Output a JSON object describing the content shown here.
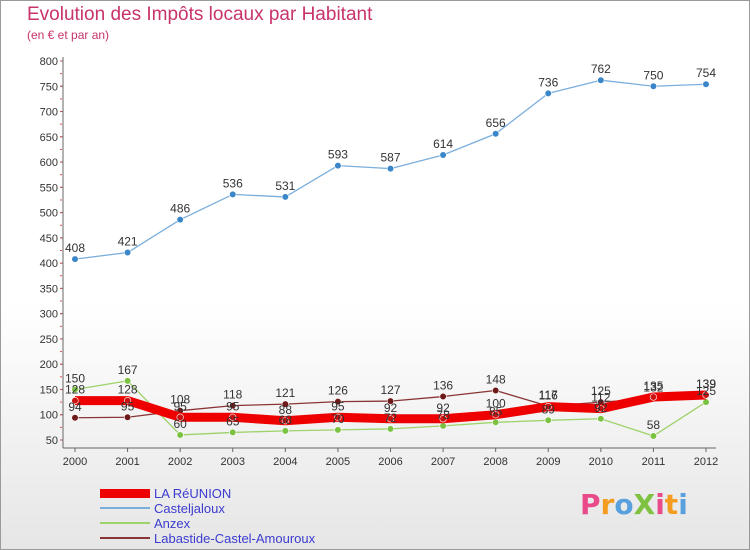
{
  "title": "Evolution des Impôts locaux par Habitant",
  "subtitle": "(en € et par an)",
  "logo": {
    "text": "ProXiti",
    "colors": [
      "#e94a8a",
      "#f39c1f",
      "#5aa0dd",
      "#7fc241",
      "#e94a8a",
      "#f39c1f",
      "#5aa0dd"
    ]
  },
  "chart_data": {
    "type": "line",
    "x": [
      "2000",
      "2001",
      "2002",
      "2003",
      "2004",
      "2005",
      "2006",
      "2007",
      "2008",
      "2009",
      "2010",
      "2011",
      "2012"
    ],
    "ylim": [
      50,
      800
    ],
    "yticks": [
      50,
      100,
      150,
      200,
      250,
      300,
      350,
      400,
      450,
      500,
      550,
      600,
      650,
      700,
      750,
      800
    ],
    "grid": false,
    "legend_position": "bottom-left",
    "series": [
      {
        "name": "LA RéUNION",
        "color": "#ee0000",
        "marker": "#cc1111",
        "values": [
          128,
          128,
          95,
          95,
          88,
          95,
          92,
          92,
          100,
          116,
          112,
          135,
          139
        ],
        "labels": [
          "128",
          "128",
          "95",
          "95",
          "88",
          "95",
          "92",
          "92",
          "100",
          "116",
          "112",
          "135",
          "139"
        ]
      },
      {
        "name": "Casteljaloux",
        "color": "#7aaedc",
        "marker": "#3a86c8",
        "values": [
          408,
          421,
          486,
          536,
          531,
          593,
          587,
          614,
          656,
          736,
          762,
          750,
          754
        ],
        "labels": [
          "408",
          "421",
          "486",
          "536",
          "531",
          "593",
          "587",
          "614",
          "656",
          "736",
          "762",
          "750",
          "754"
        ]
      },
      {
        "name": "Anzex",
        "color": "#9ed26a",
        "marker": "#7cc242",
        "values": [
          150,
          167,
          60,
          65,
          68,
          70,
          72,
          78,
          85,
          89,
          92,
          58,
          125
        ],
        "labels": [
          "150",
          "167",
          "60",
          "65",
          "68",
          "70",
          "72",
          "78",
          "85",
          "89",
          "92",
          "58",
          "125"
        ]
      },
      {
        "name": "Labastide-Castel-Amouroux",
        "color": "#8a3535",
        "marker": "#6e1a1a",
        "values": [
          94,
          95,
          108,
          118,
          121,
          126,
          127,
          136,
          148,
          117,
          125,
          132,
          139
        ],
        "labels": [
          "94",
          "95",
          "108",
          "118",
          "121",
          "126",
          "127",
          "136",
          "148",
          "117",
          "125",
          "132",
          "139"
        ]
      }
    ]
  }
}
